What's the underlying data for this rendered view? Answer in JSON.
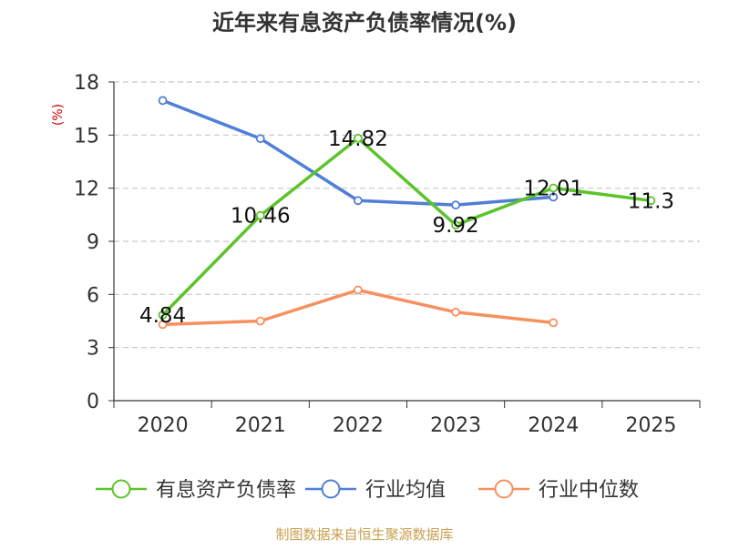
{
  "chart_data": {
    "type": "line",
    "title": "近年来有息资产负债率情况(%)",
    "ylabel": "(%)",
    "xlabel": "",
    "categories": [
      "2020",
      "2021",
      "2022",
      "2023",
      "2024",
      "2025"
    ],
    "ylim": [
      0,
      18
    ],
    "yticks": [
      0,
      3,
      6,
      9,
      12,
      15,
      18
    ],
    "grid": true,
    "legend_position": "bottom",
    "series": [
      {
        "name": "有息资产负债率",
        "color": "#5cc42b",
        "values": [
          4.84,
          10.46,
          14.82,
          9.92,
          12.01,
          11.3
        ],
        "data_labels": [
          "4.84",
          "10.46",
          "14.82",
          "9.92",
          "12.01",
          "11.3"
        ]
      },
      {
        "name": "行业均值",
        "color": "#4f7fd9",
        "values": [
          16.95,
          14.8,
          11.3,
          11.05,
          11.5,
          null
        ]
      },
      {
        "name": "行业中位数",
        "color": "#f7905e",
        "values": [
          4.3,
          4.5,
          6.25,
          5.0,
          4.4,
          null
        ]
      }
    ]
  },
  "source": "制图数据来自恒生聚源数据库",
  "colors": {
    "title": "#333333",
    "axis": "#333333",
    "grid": "#c8c8c8",
    "ylabel": "#cc0000",
    "source": "#c8a050"
  }
}
